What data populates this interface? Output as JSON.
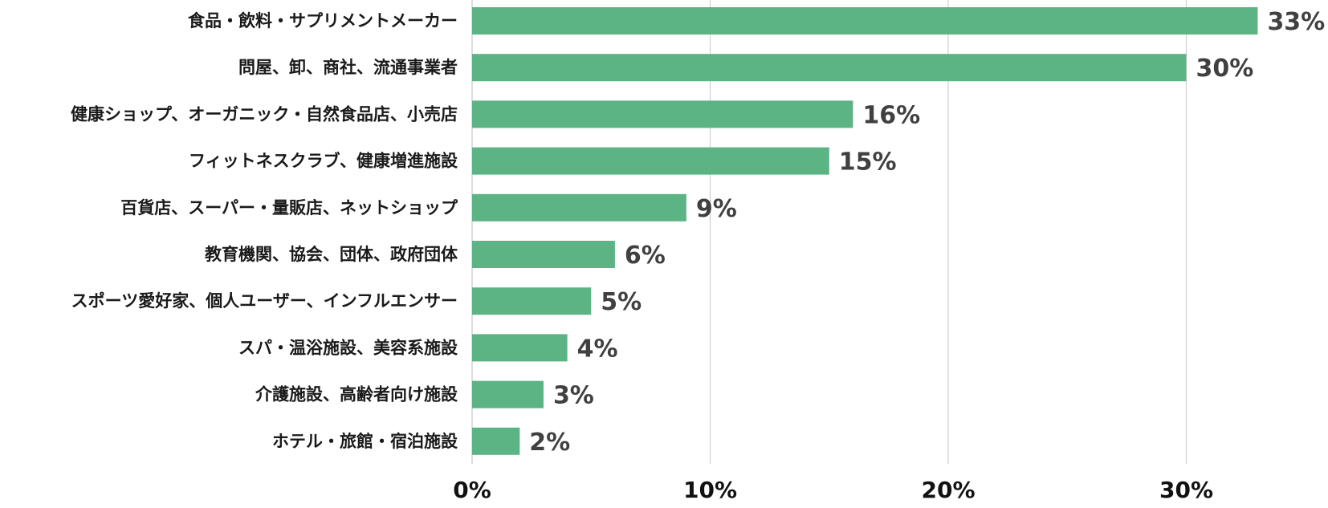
{
  "chart_data": {
    "type": "bar",
    "orientation": "horizontal",
    "categories": [
      "食品・飲料・サプリメントメーカー",
      "問屋、卸、商社、流通事業者",
      "健康ショップ、オーガニック・自然食品店、小売店",
      "フィットネスクラブ、健康増進施設",
      "百貨店、スーパー・量販店、ネットショップ",
      "教育機関、協会、団体、政府団体",
      "スポーツ愛好家、個人ユーザー、インフルエンサー",
      "スパ・温浴施設、美容系施設",
      "介護施設、高齢者向け施設",
      "ホテル・旅館・宿泊施設"
    ],
    "values": [
      33,
      30,
      16,
      15,
      9,
      6,
      5,
      4,
      3,
      2
    ],
    "value_labels": [
      "33%",
      "30%",
      "16%",
      "15%",
      "9%",
      "6%",
      "5%",
      "4%",
      "3%",
      "2%"
    ],
    "xlim": [
      0,
      36
    ],
    "xticks": [
      0,
      10,
      20,
      30
    ],
    "xtick_labels": [
      "0%",
      "10%",
      "20%",
      "30%"
    ],
    "grid": true,
    "colors": {
      "bar": "#5cb384"
    }
  }
}
